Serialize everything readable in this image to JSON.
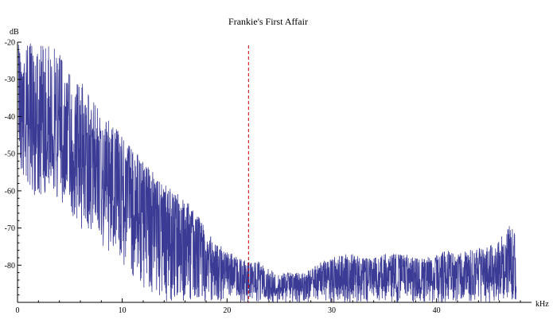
{
  "chart_data": {
    "type": "area",
    "title": "Frankie's First Affair",
    "xlabel": "kHz",
    "ylabel": "dB",
    "xlim": [
      0,
      48
    ],
    "ylim": [
      -90,
      -20
    ],
    "x_ticks": [
      "0",
      "10",
      "20",
      "30",
      "40"
    ],
    "y_ticks": [
      "-20",
      "-30",
      "-40",
      "-50",
      "-60",
      "-70",
      "-80"
    ],
    "x_tick_values": [
      0,
      10,
      20,
      30,
      40
    ],
    "y_tick_values": [
      -20,
      -30,
      -40,
      -50,
      -60,
      -70,
      -80
    ],
    "series_color": "#3b3b96",
    "marker_line": {
      "x": 22.05,
      "color": "#cc0000",
      "style": "dashed"
    },
    "grid": false,
    "envelope": {
      "x": [
        0.1,
        1,
        2,
        3,
        4,
        5,
        6,
        7,
        8,
        9,
        10,
        11,
        12,
        13,
        14,
        15,
        16,
        17,
        18,
        19,
        20,
        21,
        22,
        23,
        24,
        25,
        26,
        27,
        28,
        29,
        30,
        31,
        32,
        33,
        34,
        35,
        36,
        37,
        38,
        39,
        40,
        41,
        42,
        43,
        44,
        45,
        46,
        47,
        47.6
      ],
      "top": [
        -20,
        -20,
        -20,
        -20,
        -22,
        -27,
        -30,
        -35,
        -38,
        -42,
        -45,
        -48,
        -52,
        -55,
        -58,
        -60,
        -62,
        -65,
        -70,
        -74,
        -76,
        -78,
        -79,
        -79,
        -81,
        -82,
        -82,
        -82,
        -81,
        -79,
        -78,
        -77,
        -77,
        -78,
        -78,
        -77,
        -77,
        -77,
        -78,
        -78,
        -77,
        -76,
        -77,
        -76,
        -75,
        -75,
        -73,
        -69,
        -72
      ],
      "mid": [
        -35,
        -40,
        -42,
        -44,
        -45,
        -48,
        -52,
        -55,
        -57,
        -59,
        -62,
        -64,
        -66,
        -68,
        -70,
        -72,
        -74,
        -76,
        -78,
        -80,
        -82,
        -84,
        -85,
        -85,
        -86,
        -86,
        -86,
        -86,
        -85,
        -84,
        -84,
        -84,
        -84,
        -84,
        -84,
        -84,
        -84,
        -84,
        -84,
        -83,
        -83,
        -83,
        -83,
        -83,
        -82,
        -82,
        -82,
        -81,
        -82
      ],
      "low": [
        -55,
        -60,
        -62,
        -60,
        -63,
        -66,
        -70,
        -72,
        -75,
        -78,
        -80,
        -83,
        -86,
        -88,
        -90,
        -90,
        -90,
        -90,
        -90,
        -90,
        -90,
        -90,
        -90,
        -90,
        -90,
        -90,
        -90,
        -90,
        -90,
        -90,
        -90,
        -90,
        -90,
        -90,
        -90,
        -90,
        -90,
        -90,
        -90,
        -90,
        -90,
        -90,
        -90,
        -90,
        -90,
        -90,
        -90,
        -90,
        -90
      ]
    }
  }
}
